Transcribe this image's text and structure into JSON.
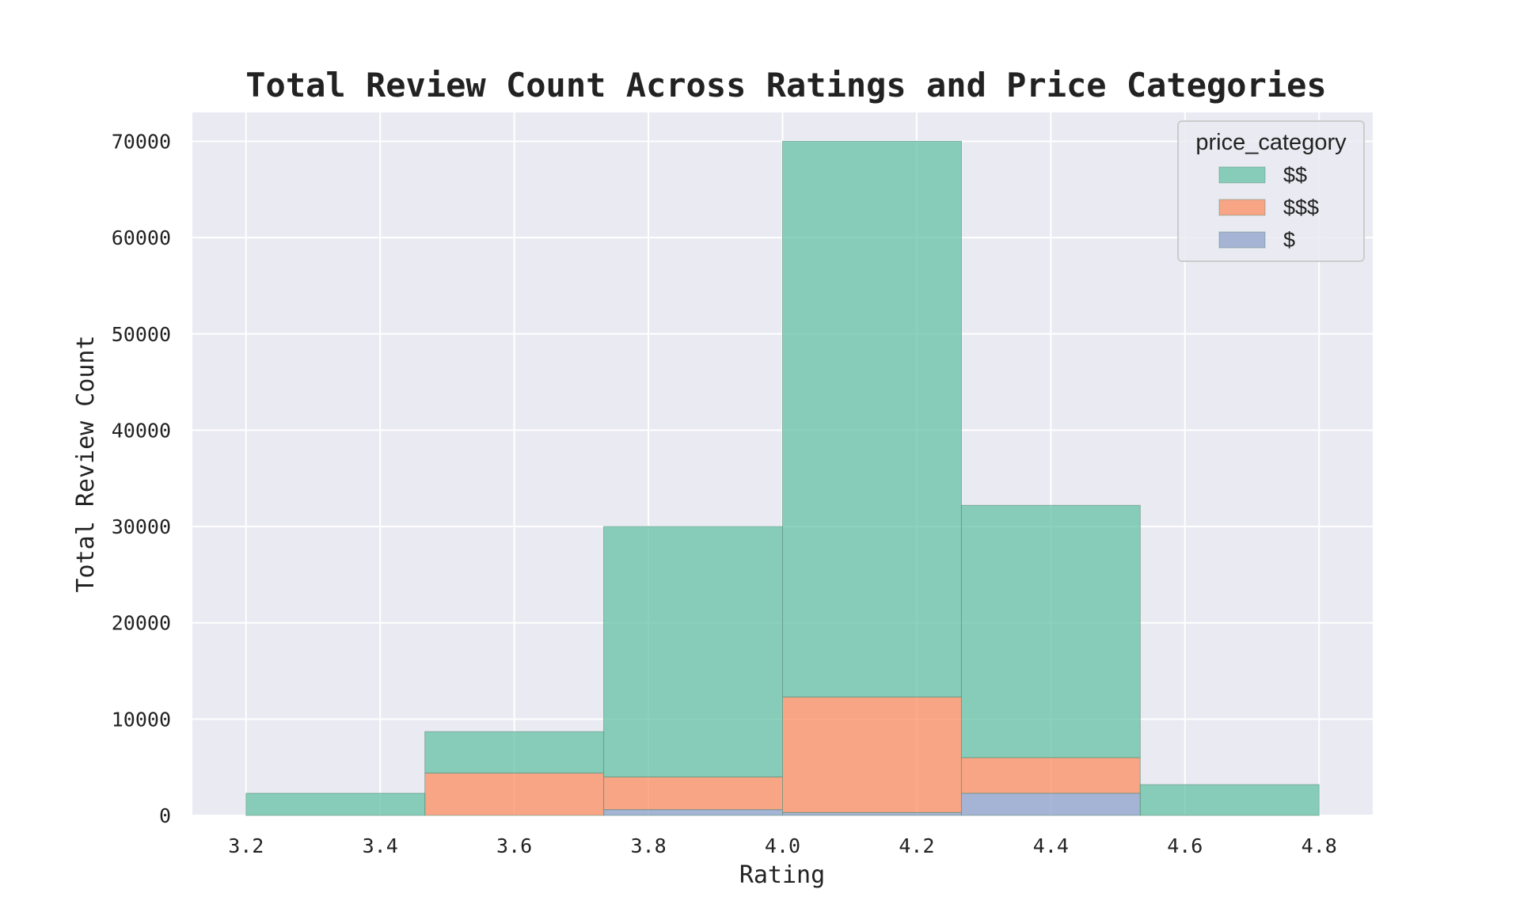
{
  "chart_data": {
    "type": "bar",
    "stacked": true,
    "title": "Total Review Count Across Ratings and Price Categories",
    "xlabel": "Rating",
    "ylabel": "Total Review Count",
    "xlim": [
      3.12,
      4.88
    ],
    "ylim": [
      0,
      73000
    ],
    "xticks": [
      "3.2",
      "3.4",
      "3.6",
      "3.8",
      "4.0",
      "4.2",
      "4.4",
      "4.6",
      "4.8"
    ],
    "yticks": [
      "0",
      "10000",
      "20000",
      "30000",
      "40000",
      "50000",
      "60000",
      "70000"
    ],
    "bin_edges": [
      3.2,
      3.4667,
      3.7333,
      4.0,
      4.2667,
      4.5333,
      4.8
    ],
    "grid": true,
    "legend": {
      "title": "price_category",
      "position": "top-right"
    },
    "series": [
      {
        "name": "$",
        "color": "#8da0cb",
        "values": [
          0,
          0,
          600,
          300,
          2300,
          0
        ]
      },
      {
        "name": "$$$",
        "color": "#fc8d62",
        "values": [
          0,
          4400,
          3400,
          12000,
          3700,
          0
        ]
      },
      {
        "name": "$$",
        "color": "#66c2a5",
        "values": [
          2300,
          4300,
          26000,
          57700,
          26200,
          3200
        ]
      }
    ],
    "legend_order": [
      "$$",
      "$$$",
      "$"
    ]
  }
}
